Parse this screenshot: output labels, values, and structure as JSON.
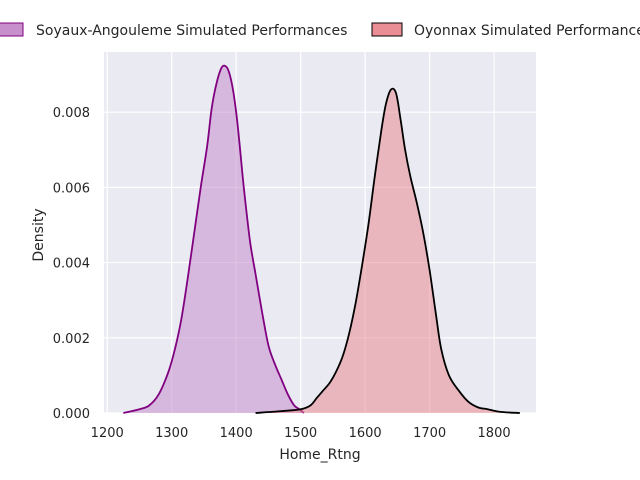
{
  "chart_data": {
    "type": "area",
    "xlabel": "Home_Rtng",
    "ylabel": "Density",
    "xlim": [
      1195,
      1865
    ],
    "ylim": [
      0,
      0.0096
    ],
    "xticks": [
      1200,
      1300,
      1400,
      1500,
      1600,
      1700,
      1800
    ],
    "yticks": [
      0.0,
      0.002,
      0.004,
      0.006,
      0.008
    ],
    "ytick_labels": [
      "0.000",
      "0.002",
      "0.004",
      "0.006",
      "0.008"
    ],
    "grid": true,
    "legend_position": "top",
    "series": [
      {
        "name": "Soyaux-Angouleme Simulated Performances",
        "fill": "#c183c7",
        "line": "#800080",
        "x": [
          1225,
          1250,
          1265,
          1280,
          1295,
          1305,
          1315,
          1325,
          1335,
          1345,
          1355,
          1362,
          1370,
          1378,
          1385,
          1390,
          1395,
          1400,
          1405,
          1410,
          1415,
          1422,
          1430,
          1440,
          1450,
          1460,
          1470,
          1480,
          1490,
          1498,
          1505
        ],
        "y": [
          0.0,
          0.0001,
          0.0002,
          0.0005,
          0.0011,
          0.0017,
          0.0025,
          0.0036,
          0.0048,
          0.006,
          0.0071,
          0.0081,
          0.0088,
          0.0092,
          0.0092,
          0.009,
          0.0086,
          0.008,
          0.0072,
          0.0063,
          0.0055,
          0.0045,
          0.0037,
          0.0027,
          0.0018,
          0.0013,
          0.0009,
          0.0005,
          0.0002,
          0.0001,
          0.0
        ]
      },
      {
        "name": "Oyonnax Simulated Performances",
        "fill": "#e8828a",
        "line": "#000000",
        "x": [
          1430,
          1470,
          1500,
          1515,
          1525,
          1535,
          1545,
          1555,
          1565,
          1575,
          1585,
          1595,
          1605,
          1615,
          1625,
          1632,
          1640,
          1648,
          1655,
          1662,
          1670,
          1680,
          1690,
          1700,
          1710,
          1718,
          1730,
          1745,
          1760,
          1775,
          1790,
          1810,
          1840
        ],
        "y": [
          0.0,
          5e-05,
          0.0001,
          0.0002,
          0.0004,
          0.0006,
          0.0008,
          0.0011,
          0.0015,
          0.0021,
          0.0029,
          0.0039,
          0.005,
          0.0063,
          0.0075,
          0.0082,
          0.0086,
          0.0085,
          0.0078,
          0.007,
          0.0063,
          0.0056,
          0.0048,
          0.0038,
          0.0026,
          0.0017,
          0.001,
          0.0006,
          0.0003,
          0.00015,
          0.0001,
          3e-05,
          0.0
        ]
      }
    ]
  }
}
